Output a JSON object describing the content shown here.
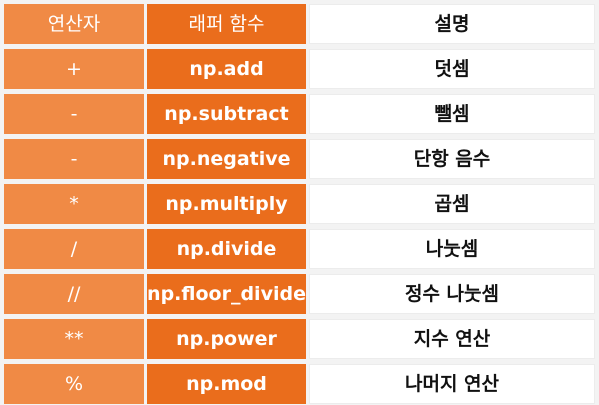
{
  "header": {
    "operator": "연산자",
    "wrapper": "래퍼 함수",
    "description": "설명"
  },
  "rows": [
    {
      "operator": "+",
      "wrapper": "np.add",
      "description": "덧셈"
    },
    {
      "operator": "-",
      "wrapper": "np.subtract",
      "description": "뺄셈"
    },
    {
      "operator": "-",
      "wrapper": "np.negative",
      "description": "단항 음수"
    },
    {
      "operator": "*",
      "wrapper": "np.multiply",
      "description": "곱셈"
    },
    {
      "operator": "/",
      "wrapper": "np.divide",
      "description": "나눗셈"
    },
    {
      "operator": "//",
      "wrapper": "np.floor_divide",
      "description": "정수 나눗셈"
    },
    {
      "operator": "**",
      "wrapper": "np.power",
      "description": "지수 연산"
    },
    {
      "operator": "%",
      "wrapper": "np.mod",
      "description": "나머지 연산"
    }
  ],
  "colors": {
    "operator_bg": "#f08a45",
    "wrapper_bg": "#ea6d1c",
    "description_bg": "#ffffff"
  }
}
